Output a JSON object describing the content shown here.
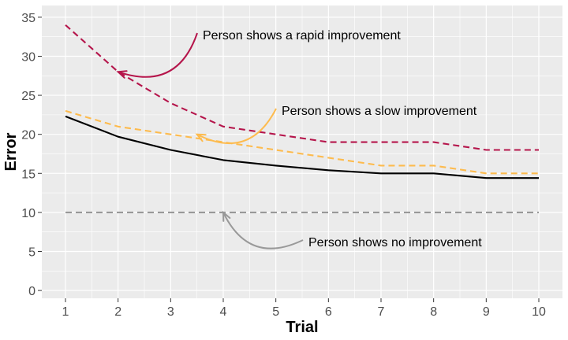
{
  "chart_data": {
    "type": "line",
    "title": "",
    "xlabel": "Trial",
    "ylabel": "Error",
    "x": [
      1,
      2,
      3,
      4,
      5,
      6,
      7,
      8,
      9,
      10
    ],
    "xlim": [
      0.55,
      10.45
    ],
    "ylim": [
      -1,
      36.5
    ],
    "x_ticks": [
      "1",
      "2",
      "3",
      "4",
      "5",
      "6",
      "7",
      "8",
      "9",
      "10"
    ],
    "y_ticks": [
      "0",
      "5",
      "10",
      "15",
      "20",
      "25",
      "30",
      "35"
    ],
    "y_tick_values": [
      0,
      5,
      10,
      15,
      20,
      25,
      30,
      35
    ],
    "grid": true,
    "series": [
      {
        "id": "average",
        "values": [
          22.3,
          19.7,
          18.0,
          16.7,
          16.0,
          15.4,
          15.0,
          15.0,
          14.4,
          14.4
        ],
        "color": "#000000",
        "dash": "solid"
      },
      {
        "id": "rapid",
        "values": [
          34.0,
          28.0,
          24.0,
          21.0,
          20.0,
          19.0,
          19.0,
          19.0,
          18.0,
          18.0
        ],
        "color": "#b5154b",
        "dash": "dashed"
      },
      {
        "id": "slow",
        "values": [
          23.0,
          21.0,
          20.0,
          19.0,
          18.0,
          17.0,
          16.0,
          16.0,
          15.0,
          15.0
        ],
        "color": "#fdbb4e",
        "dash": "dashed"
      },
      {
        "id": "none",
        "values": [
          10,
          10,
          10,
          10,
          10,
          10,
          10,
          10,
          10,
          10
        ],
        "color": "#999999",
        "dash": "dashed"
      }
    ],
    "annotations": [
      {
        "text": "Person shows a rapid improvement",
        "color": "#b5154b",
        "point_x": 2,
        "point_y": 28
      },
      {
        "text": "Person shows a slow improvement",
        "color": "#fdbb4e",
        "point_x": 3.5,
        "point_y": 20
      },
      {
        "text": "Person shows no improvement",
        "color": "#999999",
        "point_x": 4,
        "point_y": 10
      }
    ],
    "colors": {
      "panel": "#ebebeb",
      "grid": "#ffffff"
    }
  }
}
